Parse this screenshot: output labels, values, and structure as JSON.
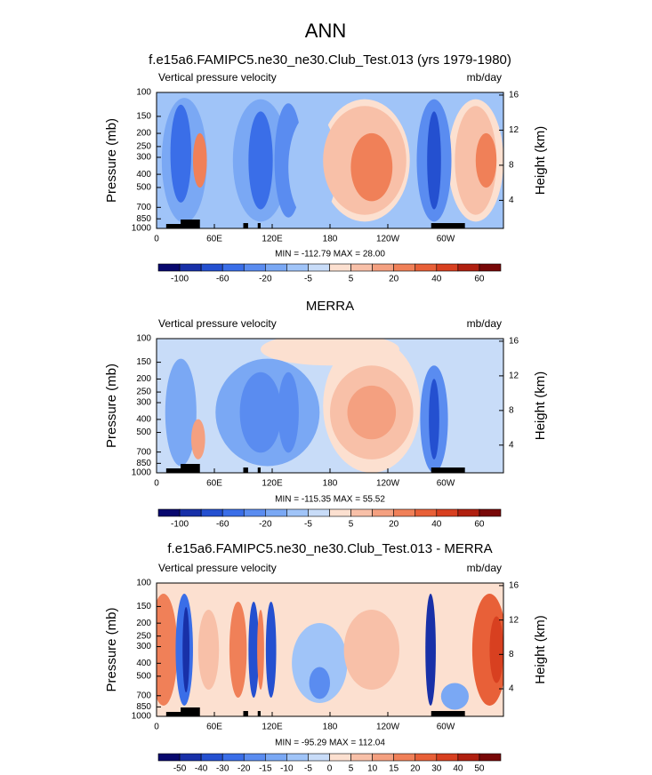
{
  "title": "ANN",
  "chart_data": [
    {
      "type": "contour",
      "title": "f.e15a6.FAMIPC5.ne30_ne30.Club_Test.013 (yrs 1979-1980)",
      "left_string": "Vertical pressure velocity",
      "right_string": "mb/day",
      "stats": "MIN = -112.79  MAX =  28.00",
      "ylabel": "Pressure (mb)",
      "y2label": "Height (km)",
      "xlim": [
        0,
        360
      ],
      "xticks": [
        0,
        {
          "value": 60,
          "label": "60E"
        },
        {
          "value": 120,
          "label": "120E"
        },
        {
          "value": 180,
          "label": "180"
        },
        {
          "value": 240,
          "label": "120W"
        },
        {
          "value": 300,
          "label": "60W"
        }
      ],
      "ylim": [
        1000,
        100
      ],
      "log_y": true,
      "yticks": [
        100,
        150,
        200,
        250,
        300,
        400,
        500,
        700,
        850,
        1000
      ],
      "y2lim": [
        0.8,
        16.3
      ],
      "y2ticks": [
        4,
        8,
        12,
        16
      ],
      "colorbar": {
        "labels": [
          -100,
          -60,
          -20,
          -5,
          5,
          20,
          40,
          60
        ],
        "colors": [
          "#08086e",
          "#1830a8",
          "#2450d0",
          "#3a6ee8",
          "#5a8cf0",
          "#7aa8f4",
          "#a0c4f8",
          "#c8dcf8",
          "#fce0d0",
          "#f8c0a8",
          "#f4a080",
          "#f08058",
          "#e86038",
          "#d84020",
          "#b02010",
          "#780808"
        ]
      }
    },
    {
      "type": "contour",
      "title": "MERRA",
      "left_string": "Vertical pressure velocity",
      "right_string": "mb/day",
      "stats": "MIN = -115.35  MAX =  55.52",
      "ylabel": "Pressure (mb)",
      "y2label": "Height (km)",
      "xlim": [
        0,
        360
      ],
      "xticks": [
        0,
        {
          "value": 60,
          "label": "60E"
        },
        {
          "value": 120,
          "label": "120E"
        },
        {
          "value": 180,
          "label": "180"
        },
        {
          "value": 240,
          "label": "120W"
        },
        {
          "value": 300,
          "label": "60W"
        }
      ],
      "ylim": [
        1000,
        100
      ],
      "log_y": true,
      "yticks": [
        100,
        150,
        200,
        250,
        300,
        400,
        500,
        700,
        850,
        1000
      ],
      "y2lim": [
        0.8,
        16.3
      ],
      "y2ticks": [
        4,
        8,
        12,
        16
      ],
      "colorbar": {
        "labels": [
          -100,
          -60,
          -20,
          -5,
          5,
          20,
          40,
          60
        ],
        "colors": [
          "#08086e",
          "#1830a8",
          "#2450d0",
          "#3a6ee8",
          "#5a8cf0",
          "#7aa8f4",
          "#a0c4f8",
          "#c8dcf8",
          "#fce0d0",
          "#f8c0a8",
          "#f4a080",
          "#f08058",
          "#e86038",
          "#d84020",
          "#b02010",
          "#780808"
        ]
      }
    },
    {
      "type": "contour",
      "title": "f.e15a6.FAMIPC5.ne30_ne30.Club_Test.013 - MERRA",
      "left_string": "Vertical pressure velocity",
      "right_string": "mb/day",
      "stats": "MIN = -95.29  MAX = 112.04",
      "ylabel": "Pressure (mb)",
      "y2label": "Height (km)",
      "xlim": [
        0,
        360
      ],
      "xticks": [
        0,
        {
          "value": 60,
          "label": "60E"
        },
        {
          "value": 120,
          "label": "120E"
        },
        {
          "value": 180,
          "label": "180"
        },
        {
          "value": 240,
          "label": "120W"
        },
        {
          "value": 300,
          "label": "60W"
        }
      ],
      "ylim": [
        1000,
        100
      ],
      "log_y": true,
      "yticks": [
        100,
        150,
        200,
        250,
        300,
        400,
        500,
        700,
        850,
        1000
      ],
      "y2lim": [
        0.8,
        16.3
      ],
      "y2ticks": [
        4,
        8,
        12,
        16
      ],
      "colorbar": {
        "labels": [
          -50,
          -40,
          -30,
          -20,
          -15,
          -10,
          -5,
          0,
          5,
          10,
          15,
          20,
          30,
          40,
          50
        ],
        "colors": [
          "#08086e",
          "#1830a8",
          "#2450d0",
          "#3a6ee8",
          "#5a8cf0",
          "#7aa8f4",
          "#a0c4f8",
          "#c8dcf8",
          "#fce0d0",
          "#f8c0a8",
          "#f4a080",
          "#f08058",
          "#e86038",
          "#d84020",
          "#b02010",
          "#780808"
        ]
      }
    }
  ]
}
